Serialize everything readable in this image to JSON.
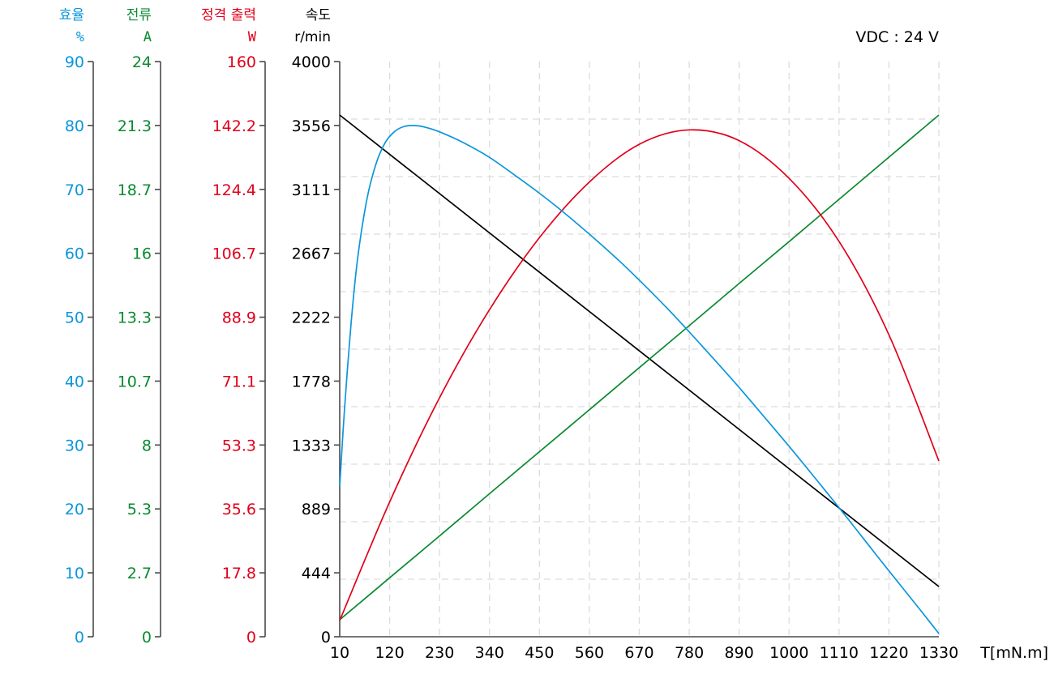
{
  "chart_data": {
    "type": "line",
    "title": "",
    "annotation": "VDC : 24 V",
    "xlabel": "T[mN.m]",
    "x_ticks": [
      10,
      120,
      230,
      340,
      450,
      560,
      670,
      780,
      890,
      1000,
      1110,
      1220,
      1330
    ],
    "xlim": [
      10,
      1330
    ],
    "grid": true,
    "legend": "none",
    "axes": [
      {
        "id": "efficiency",
        "label": "효율",
        "unit": "%",
        "color": "#0a96dc",
        "ylim": [
          0,
          90
        ],
        "ticks": [
          "0",
          "10",
          "20",
          "30",
          "40",
          "50",
          "60",
          "70",
          "80",
          "90"
        ]
      },
      {
        "id": "current",
        "label": "전류",
        "unit": "A",
        "color": "#0a8a30",
        "ylim": [
          0,
          24
        ],
        "ticks": [
          "0",
          "2.7",
          "5.3",
          "8",
          "10.7",
          "13.3",
          "16",
          "18.7",
          "21.3",
          "24"
        ]
      },
      {
        "id": "power",
        "label": "정격 출력",
        "unit": "W",
        "color": "#e0001a",
        "ylim": [
          0,
          160
        ],
        "ticks": [
          "0",
          "17.8",
          "35.6",
          "53.3",
          "71.1",
          "88.9",
          "106.7",
          "124.4",
          "142.2",
          "160"
        ]
      },
      {
        "id": "speed",
        "label": "속도",
        "unit": "r/min",
        "color": "#000000",
        "ylim": [
          0,
          4000
        ],
        "ticks": [
          "0",
          "444",
          "889",
          "1333",
          "1778",
          "2222",
          "2667",
          "3111",
          "3556",
          "4000"
        ]
      }
    ],
    "series": [
      {
        "name": "속도 (r/min)",
        "axis": "speed",
        "color": "#000000",
        "x": [
          10,
          1330
        ],
        "y": [
          3628,
          349
        ]
      },
      {
        "name": "전류 (A)",
        "axis": "current",
        "color": "#0a8a30",
        "x": [
          10,
          120,
          230,
          340,
          450,
          560,
          670,
          780,
          890,
          1000,
          1110,
          1220,
          1330
        ],
        "y": [
          0.71,
          2.46,
          4.21,
          5.97,
          7.72,
          9.47,
          11.23,
          12.98,
          14.74,
          16.49,
          18.25,
          20.01,
          21.77
        ]
      },
      {
        "name": "정격 출력 (W)",
        "axis": "power",
        "color": "#e0001a",
        "x": [
          10,
          120,
          230,
          340,
          450,
          560,
          670,
          780,
          890,
          1000,
          1110,
          1220,
          1330
        ],
        "y": [
          4.5,
          37.5,
          66.5,
          91.0,
          111.0,
          126.5,
          137.0,
          141.0,
          138.0,
          127.5,
          110.0,
          84.0,
          48.9
        ]
      },
      {
        "name": "효율 (%)",
        "axis": "efficiency",
        "color": "#0a96dc",
        "x": [
          10,
          20,
          35,
          50,
          70,
          90,
          110,
          130,
          150,
          173,
          200,
          230,
          280,
          340,
          400,
          450,
          500,
          560,
          620,
          670,
          730,
          780,
          840,
          890,
          950,
          1000,
          1060,
          1110,
          1170,
          1220,
          1280,
          1330
        ],
        "y": [
          23.5,
          35.0,
          49.0,
          59.5,
          68.5,
          74.0,
          77.3,
          79.0,
          79.8,
          80.0,
          79.7,
          79.0,
          77.4,
          75.0,
          72.0,
          69.4,
          66.6,
          63.0,
          59.2,
          55.8,
          51.5,
          47.7,
          43.0,
          39.0,
          34.0,
          29.8,
          24.6,
          20.2,
          14.8,
          10.3,
          5.0,
          0.5
        ]
      }
    ]
  },
  "header": {
    "vdc_label": "VDC : 24 V"
  }
}
